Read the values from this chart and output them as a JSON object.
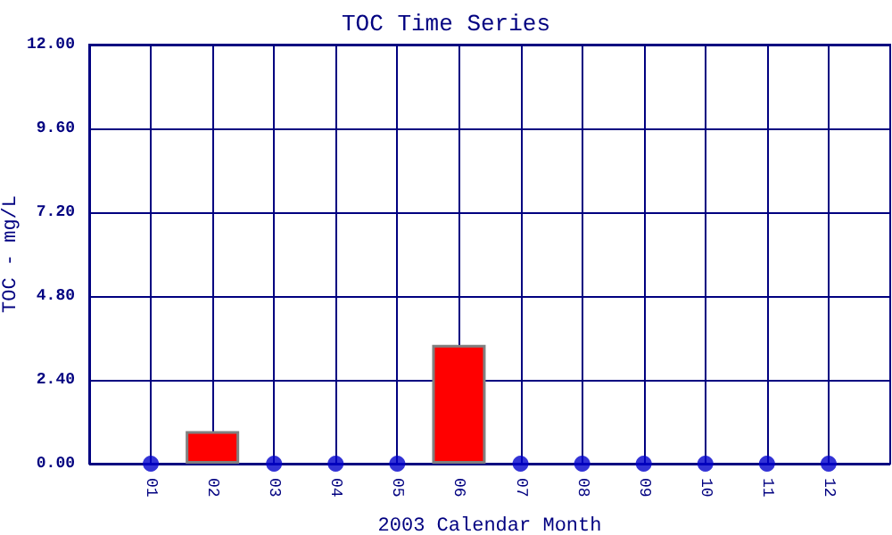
{
  "chart_data": {
    "type": "bar",
    "title": "TOC Time Series",
    "xlabel": "2003 Calendar Month",
    "ylabel": "TOC - mg/L",
    "categories": [
      "01",
      "02",
      "03",
      "04",
      "05",
      "06",
      "07",
      "08",
      "09",
      "10",
      "11",
      "12"
    ],
    "series": [
      {
        "color": "#ff0000",
        "values": [
          null,
          0.93,
          null,
          null,
          null,
          3.4,
          null,
          null,
          null,
          null,
          null,
          null
        ]
      },
      {
        "type": "scatter",
        "color": "#0000cc",
        "marker": "circle",
        "x": [
          "01",
          "03",
          "04",
          "05",
          "07",
          "08",
          "09",
          "10",
          "11",
          "12"
        ],
        "values": [
          0,
          0,
          0,
          0,
          0,
          0,
          0,
          0,
          0,
          0
        ]
      }
    ],
    "ylim": [
      0,
      12
    ],
    "yticks": [
      {
        "value": 0,
        "label": "0.00"
      },
      {
        "value": 2.4,
        "label": "2.40"
      },
      {
        "value": 4.8,
        "label": "4.80"
      },
      {
        "value": 7.2,
        "label": "7.20"
      },
      {
        "value": 9.6,
        "label": "9.60"
      },
      {
        "value": 12,
        "label": "12.00"
      }
    ],
    "grid": true
  }
}
